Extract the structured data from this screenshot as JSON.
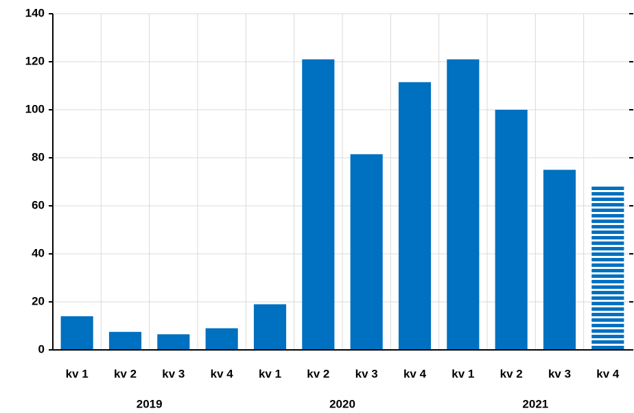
{
  "chart_data": {
    "type": "bar",
    "categories": [
      "kv 1",
      "kv 2",
      "kv 3",
      "kv 4",
      "kv 1",
      "kv 2",
      "kv 3",
      "kv 4",
      "kv 1",
      "kv 2",
      "kv 3",
      "kv 4"
    ],
    "years": [
      "2019",
      "2019",
      "2019",
      "2019",
      "2020",
      "2020",
      "2020",
      "2020",
      "2021",
      "2021",
      "2021",
      "2021"
    ],
    "values": [
      14,
      7.5,
      6.5,
      9,
      19,
      121,
      81.5,
      111.5,
      121,
      100,
      75,
      68.5
    ],
    "patterns": [
      "solid",
      "solid",
      "solid",
      "solid",
      "solid",
      "solid",
      "solid",
      "solid",
      "solid",
      "solid",
      "solid",
      "striped"
    ],
    "color": "#0070c0",
    "ylim": [
      0,
      140
    ],
    "yticks": [
      0,
      20,
      40,
      60,
      80,
      100,
      120,
      140
    ],
    "grid": true
  }
}
